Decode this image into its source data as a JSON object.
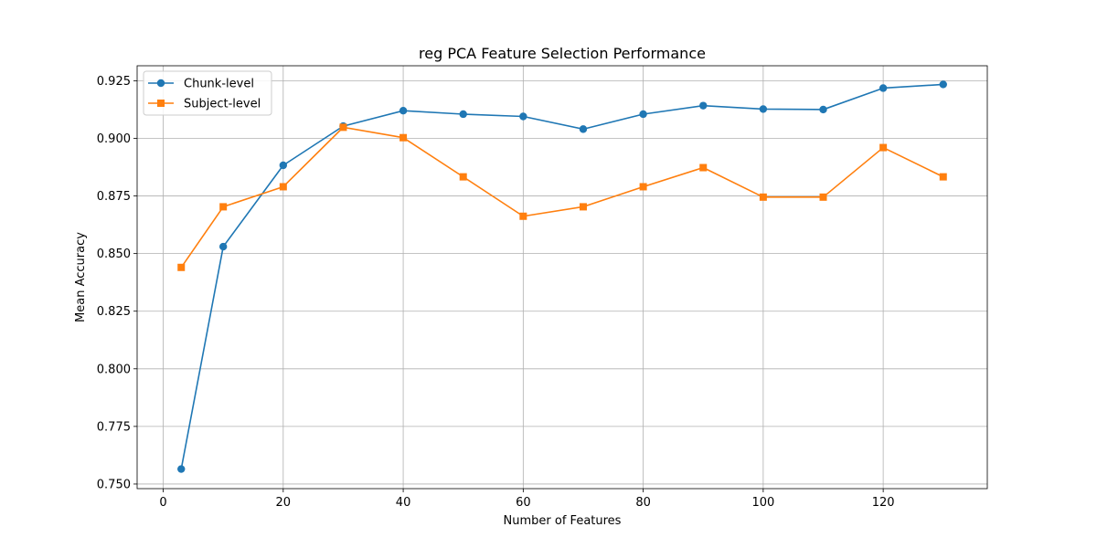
{
  "chart_data": {
    "type": "line",
    "title": "reg PCA Feature Selection Performance",
    "xlabel": "Number of Features",
    "ylabel": "Mean Accuracy",
    "x": [
      3,
      10,
      20,
      30,
      40,
      50,
      60,
      70,
      80,
      90,
      100,
      110,
      120,
      130
    ],
    "xlim": [
      -4.35,
      137.35
    ],
    "ylim": [
      0.748,
      0.9315
    ],
    "xticks": [
      0,
      20,
      40,
      60,
      80,
      100,
      120
    ],
    "xtick_labels": [
      "0",
      "20",
      "40",
      "60",
      "80",
      "100",
      "120"
    ],
    "yticks": [
      0.75,
      0.775,
      0.8,
      0.825,
      0.85,
      0.875,
      0.9,
      0.925
    ],
    "ytick_labels": [
      "0.750",
      "0.775",
      "0.800",
      "0.825",
      "0.850",
      "0.875",
      "0.900",
      "0.925"
    ],
    "grid": true,
    "legend_position": "upper-left",
    "series": [
      {
        "name": "Chunk-level",
        "color": "#1f77b4",
        "marker": "circle",
        "values": [
          0.7565,
          0.853,
          0.8883,
          0.9053,
          0.912,
          0.9105,
          0.9095,
          0.904,
          0.9105,
          0.9142,
          0.9127,
          0.9125,
          0.9218,
          0.9234
        ]
      },
      {
        "name": "Subject-level",
        "color": "#ff7f0e",
        "marker": "square",
        "values": [
          0.844,
          0.8703,
          0.879,
          0.9048,
          0.9003,
          0.8833,
          0.8662,
          0.8703,
          0.879,
          0.8873,
          0.8745,
          0.8745,
          0.896,
          0.8833
        ]
      }
    ]
  }
}
